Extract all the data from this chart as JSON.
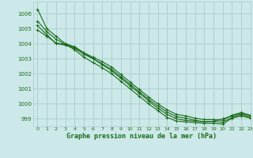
{
  "xlabel": "Graphe pression niveau de la mer (hPa)",
  "background_color": "#cce8e8",
  "grid_color": "#aacccc",
  "line_color": "#1a6b1a",
  "xlim": [
    -0.5,
    23
  ],
  "ylim": [
    998.5,
    1006.8
  ],
  "yticks": [
    999,
    1000,
    1001,
    1002,
    1003,
    1004,
    1005,
    1006
  ],
  "xticks": [
    0,
    1,
    2,
    3,
    4,
    5,
    6,
    7,
    8,
    9,
    10,
    11,
    12,
    13,
    14,
    15,
    16,
    17,
    18,
    19,
    20,
    21,
    22,
    23
  ],
  "series": [
    [
      1006.3,
      1005.0,
      1004.5,
      1004.0,
      1003.8,
      1003.4,
      1003.0,
      1002.6,
      1002.2,
      1001.7,
      1001.2,
      1000.7,
      1000.2,
      999.7,
      999.3,
      999.0,
      998.9,
      998.85,
      998.8,
      998.85,
      999.0,
      999.2,
      999.35,
      999.2
    ],
    [
      1005.5,
      1004.8,
      1004.3,
      1003.95,
      1003.6,
      1003.1,
      1002.75,
      1002.4,
      1002.0,
      1001.5,
      1001.0,
      1000.5,
      1000.0,
      999.55,
      999.1,
      998.85,
      998.8,
      998.75,
      998.7,
      998.7,
      998.65,
      999.05,
      999.2,
      999.05
    ],
    [
      1005.2,
      1004.6,
      1004.0,
      1003.9,
      1003.7,
      1003.3,
      1003.0,
      1002.65,
      1002.3,
      1001.8,
      1001.3,
      1000.8,
      1000.3,
      999.85,
      999.45,
      999.15,
      999.05,
      998.9,
      998.82,
      998.82,
      998.78,
      999.1,
      999.28,
      999.1
    ],
    [
      1004.9,
      1004.5,
      1004.05,
      1003.95,
      1003.75,
      1003.4,
      1003.1,
      1002.8,
      1002.45,
      1001.95,
      1001.45,
      1000.95,
      1000.45,
      1000.0,
      999.6,
      999.3,
      999.2,
      999.05,
      998.95,
      998.95,
      998.9,
      999.25,
      999.42,
      999.25
    ]
  ]
}
